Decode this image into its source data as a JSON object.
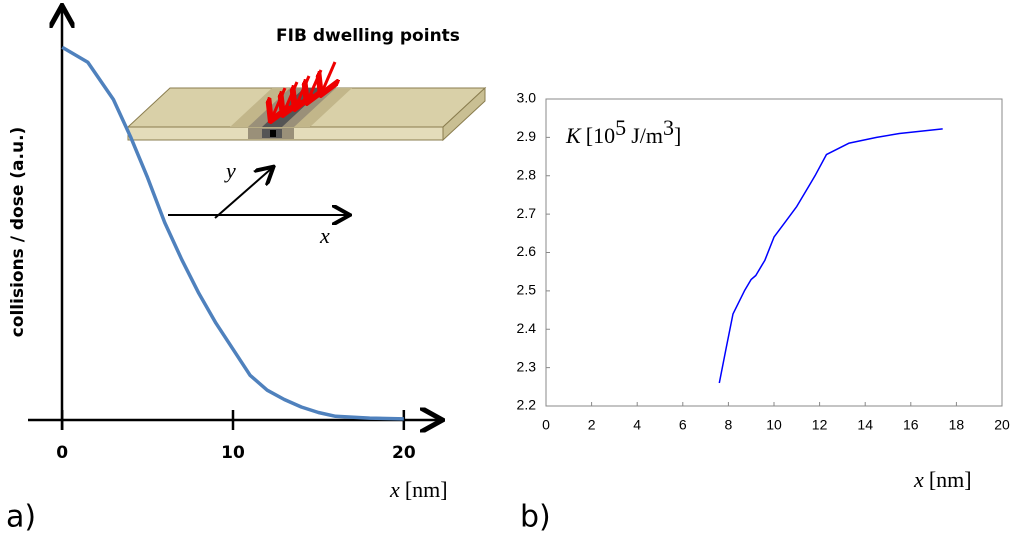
{
  "chart_data": [
    {
      "type": "line",
      "ylabel": "collisions / dose (a.u.)",
      "xlabel": {
        "symbol": "x",
        "unit": "[nm]"
      },
      "panel_label": "a)",
      "annotations": {
        "inset_title": "FIB dwelling points",
        "inset_y": "y",
        "inset_x": "x"
      },
      "x": [
        0,
        1.5,
        3,
        4,
        5,
        6,
        7,
        8,
        9,
        10,
        11,
        12,
        13,
        14,
        15,
        16,
        18,
        20
      ],
      "series": [
        {
          "color": "#4f81bd",
          "values": [
            1.0,
            0.96,
            0.86,
            0.76,
            0.65,
            0.53,
            0.43,
            0.34,
            0.26,
            0.19,
            0.12,
            0.08,
            0.055,
            0.035,
            0.02,
            0.01,
            0.005,
            0.003
          ]
        }
      ],
      "xlim": [
        -2,
        22
      ],
      "ylim": [
        0,
        1.1
      ],
      "xticks": [
        0,
        10,
        20
      ]
    },
    {
      "type": "line",
      "xlabel": {
        "symbol": "x",
        "unit": "[nm]"
      },
      "panel_label": "b)",
      "annotation": {
        "symbol": "K",
        "prefix": "[10",
        "exp": "5",
        "unit": "J/m",
        "unit_exp": "3",
        "suffix": "]"
      },
      "x": [
        7.6,
        7.9,
        8.2,
        8.7,
        9.0,
        9.2,
        9.6,
        10.0,
        10.5,
        11.0,
        11.6,
        11.8,
        12.3,
        13.3,
        14.5,
        15.5,
        17.4
      ],
      "series": [
        {
          "color": "#0000ff",
          "values": [
            2.26,
            2.35,
            2.44,
            2.5,
            2.53,
            2.54,
            2.58,
            2.64,
            2.68,
            2.72,
            2.78,
            2.8,
            2.855,
            2.885,
            2.9,
            2.91,
            2.922
          ]
        }
      ],
      "xlim": [
        0,
        20
      ],
      "ylim": [
        2.2,
        3.0
      ],
      "xticks": [
        0,
        2,
        4,
        6,
        8,
        10,
        12,
        14,
        16,
        18,
        20
      ],
      "yticks": [
        {
          "value": 2.2,
          "label": "2.2"
        },
        2.3,
        2.4,
        2.5,
        2.6,
        2.7,
        2.8,
        2.9,
        {
          "value": 3.0,
          "label": "3.0"
        }
      ]
    }
  ]
}
